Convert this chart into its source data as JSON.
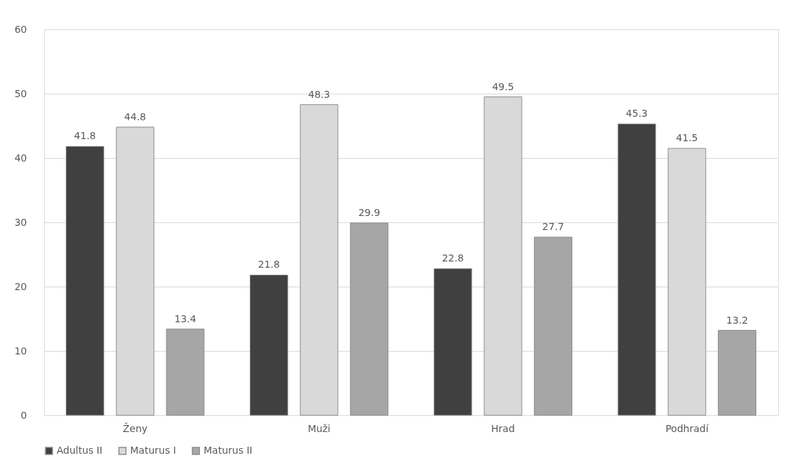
{
  "chart_data": {
    "type": "bar",
    "categories": [
      "Ženy",
      "Muži",
      "Hrad",
      "Podhradí"
    ],
    "series": [
      {
        "name": "Adultus II",
        "color": "#404040",
        "values": [
          41.8,
          21.8,
          22.8,
          45.3
        ]
      },
      {
        "name": "Maturus I",
        "color": "#d9d9d9",
        "values": [
          44.8,
          48.3,
          49.5,
          41.5
        ]
      },
      {
        "name": "Maturus II",
        "color": "#a6a6a6",
        "values": [
          13.4,
          29.9,
          27.7,
          13.2
        ]
      }
    ],
    "ylim": [
      0,
      60
    ],
    "yticks": [
      0,
      10,
      20,
      30,
      40,
      50,
      60
    ],
    "grid": "y",
    "legend": "bottom",
    "data_labels": true
  }
}
